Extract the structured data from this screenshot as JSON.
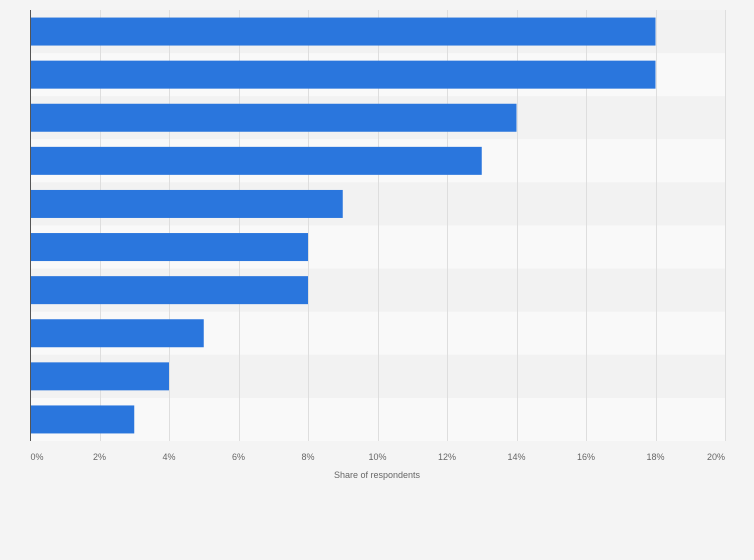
{
  "chart_data": {
    "type": "bar",
    "orientation": "horizontal",
    "title": "",
    "xlabel": "Share of respondents",
    "ylabel": "",
    "xlim": [
      0,
      20
    ],
    "x_ticks": [
      0,
      2,
      4,
      6,
      8,
      10,
      12,
      14,
      16,
      18,
      20
    ],
    "x_tick_labels": [
      "0%",
      "2%",
      "4%",
      "6%",
      "8%",
      "10%",
      "12%",
      "14%",
      "16%",
      "18%",
      "20%"
    ],
    "categories": [
      "",
      "",
      "",
      "",
      "",
      "",
      "",
      "",
      "",
      ""
    ],
    "values": [
      18,
      18,
      14,
      13,
      9,
      8,
      8,
      5,
      4,
      3
    ],
    "unit": "%",
    "grid": true,
    "colors": {
      "bar": "#2a76dd",
      "band_dark": "#f2f2f2",
      "band_light": "#f9f9f9",
      "grid": "#dedede",
      "axis": "#555555"
    }
  }
}
